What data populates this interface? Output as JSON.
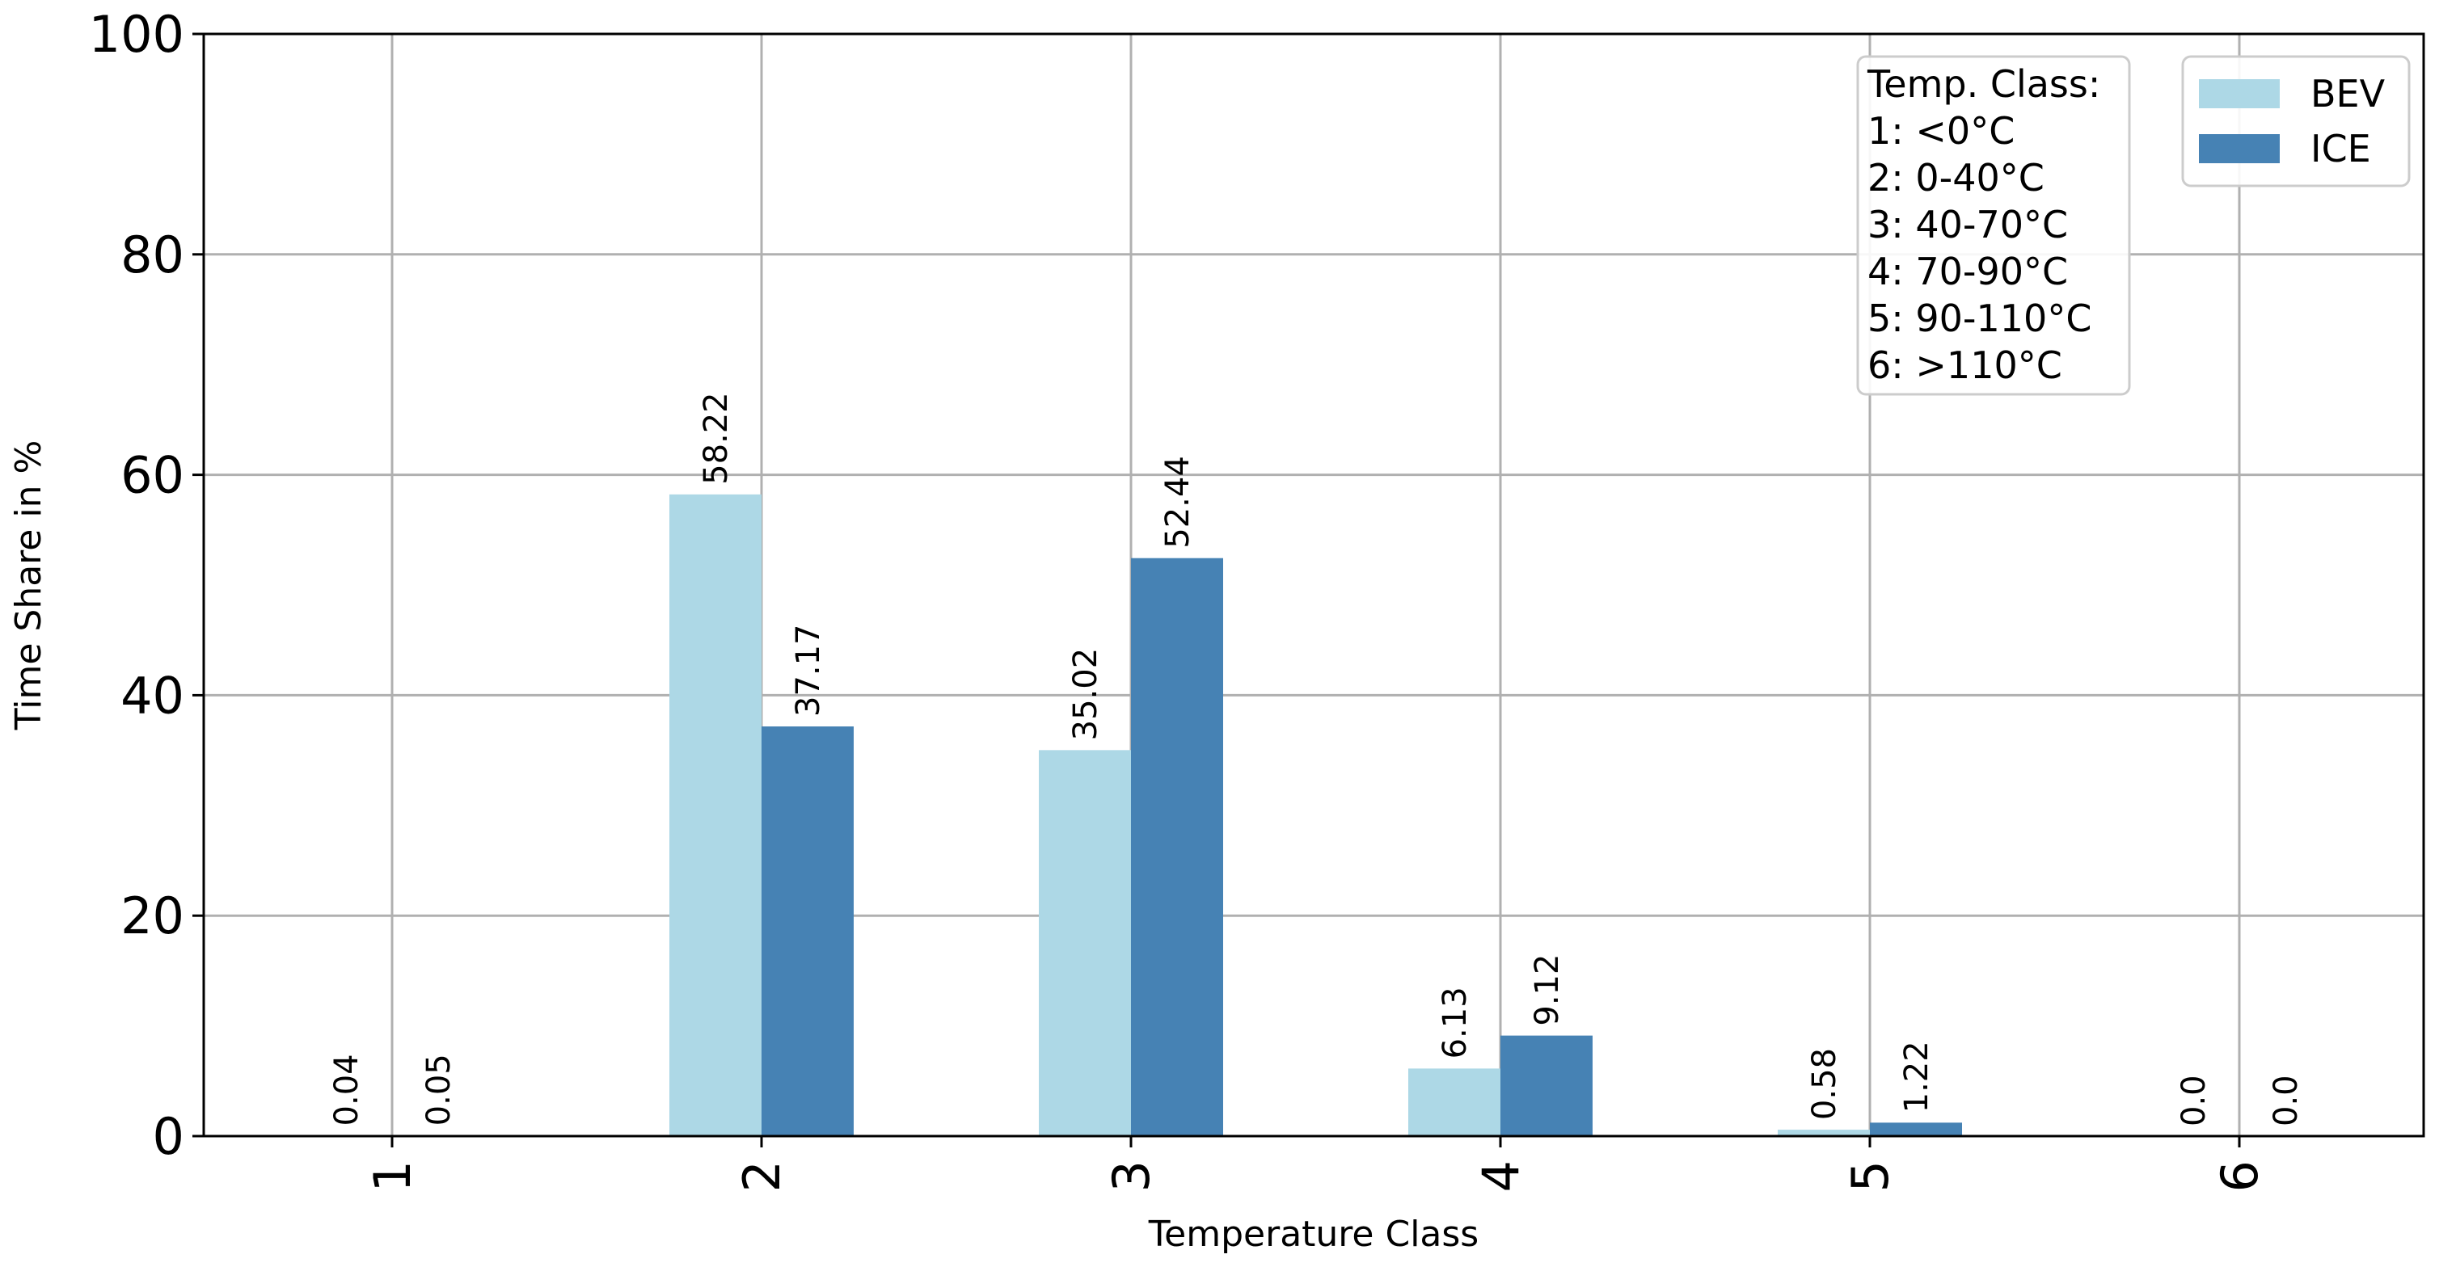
{
  "chart_data": {
    "type": "bar",
    "title": "",
    "xlabel": "Temperature Class",
    "ylabel": "Time Share in %",
    "categories": [
      "1",
      "2",
      "3",
      "4",
      "5",
      "6"
    ],
    "series": [
      {
        "name": "BEV",
        "color": "#add8e6",
        "values": [
          0.04,
          58.22,
          35.02,
          6.13,
          0.58,
          0.0
        ],
        "labels": [
          "0.04",
          "58.22",
          "35.02",
          "6.13",
          "0.58",
          "0.0"
        ]
      },
      {
        "name": "ICE",
        "color": "#4682b4",
        "values": [
          0.05,
          37.17,
          52.44,
          9.12,
          1.22,
          0.0
        ],
        "labels": [
          "0.05",
          "37.17",
          "52.44",
          "9.12",
          "1.22",
          "0.0"
        ]
      }
    ],
    "ylim": [
      0,
      100
    ],
    "yticks": [
      "0",
      "20",
      "40",
      "60",
      "80",
      "100"
    ],
    "grid": true,
    "legend_position": "top-right",
    "annotation": {
      "title": "Temp. Class:",
      "lines": [
        "1: <0°C",
        "2: 0-40°C",
        "3: 40-70°C",
        "4: 70-90°C",
        "5: 90-110°C",
        "6: >110°C"
      ]
    }
  }
}
